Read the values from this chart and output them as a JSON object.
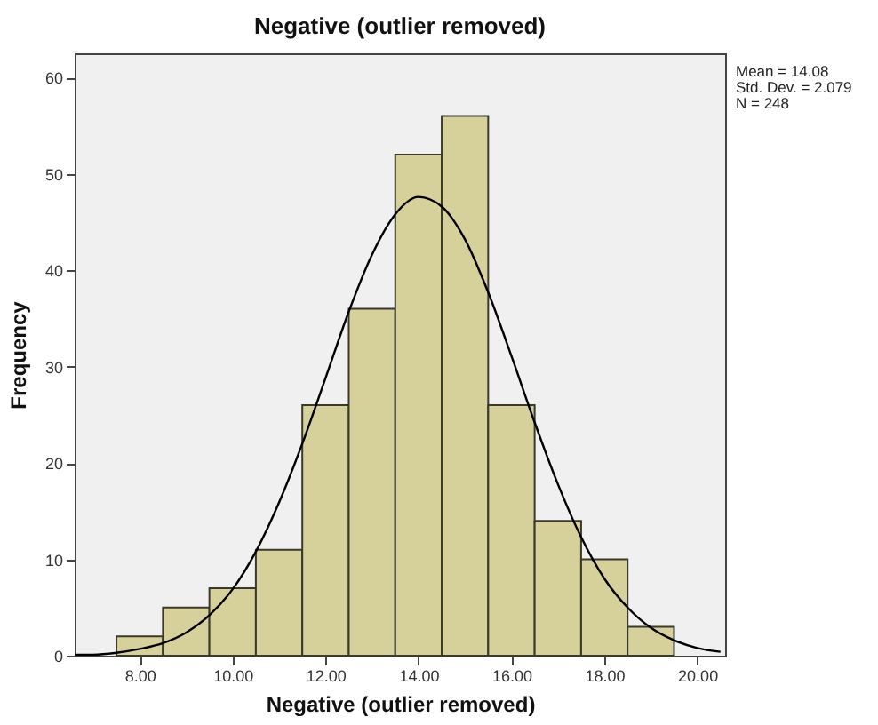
{
  "chart_data": {
    "type": "histogram",
    "title": "Negative (outlier removed)",
    "xlabel": "Negative (outlier removed)",
    "ylabel": "Frequency",
    "bins": [
      7.5,
      8.5,
      9.5,
      10.5,
      11.5,
      12.5,
      13.5,
      14.5,
      15.5,
      16.5,
      17.5,
      18.5,
      19.5
    ],
    "values": [
      2,
      5,
      7,
      11,
      26,
      36,
      52,
      56,
      26,
      14,
      10,
      3
    ],
    "color": "#d6d19b",
    "series": [
      {
        "type": "line",
        "color": "#000000",
        "x": [
          6.6,
          7.0,
          7.5,
          8.0,
          8.5,
          9.0,
          9.5,
          10.0,
          10.5,
          11.0,
          11.5,
          12.0,
          12.5,
          13.0,
          13.5,
          14.0,
          14.5,
          15.0,
          15.5,
          16.0,
          16.5,
          17.0,
          17.5,
          18.0,
          18.5,
          19.0,
          19.5,
          20.0,
          20.5
        ],
        "values": [
          0.1,
          0.1,
          0.3,
          0.7,
          1.3,
          2.4,
          4.2,
          6.9,
          10.8,
          15.9,
          22.0,
          28.8,
          35.7,
          41.6,
          45.8,
          47.6,
          46.6,
          43.2,
          37.7,
          31.1,
          24.2,
          17.8,
          12.3,
          8.0,
          5.0,
          2.9,
          1.6,
          0.8,
          0.4
        ]
      }
    ],
    "xlim": [
      6.6,
      20.6
    ],
    "ylim": [
      0,
      62.5
    ],
    "xticks": [
      {
        "value": 8,
        "label": "8.00"
      },
      {
        "value": 10,
        "label": "10.00"
      },
      {
        "value": 12,
        "label": "12.00"
      },
      {
        "value": 14,
        "label": "14.00"
      },
      {
        "value": 16,
        "label": "16.00"
      },
      {
        "value": 18,
        "label": "18.00"
      },
      {
        "value": 20,
        "label": "20.00"
      }
    ],
    "yticks": [
      0,
      10,
      20,
      30,
      40,
      50,
      60
    ],
    "annotations": [
      "Mean = 14.08",
      "Std. Dev. = 2.079",
      "N = 248"
    ],
    "marker": "none",
    "line_style": "solid"
  }
}
